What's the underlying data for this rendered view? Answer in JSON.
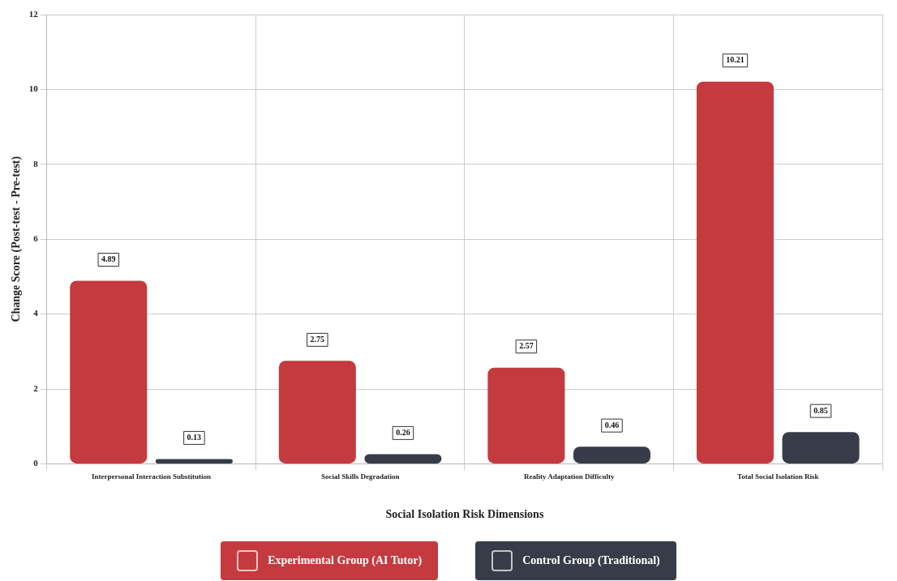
{
  "chart_data": {
    "type": "bar",
    "xlabel": "Social Isolation Risk Dimensions",
    "ylabel": "Change Score (Post-test - Pre-test)",
    "categories": [
      "Interpersonal Interaction Substitution",
      "Social Skills Degradation",
      "Reality Adaptation Difficulty",
      "Total Social Isolation Risk"
    ],
    "series": [
      {
        "name": "Experimental Group (AI Tutor)",
        "color": "#c53a3e",
        "values": [
          4.89,
          2.75,
          2.57,
          10.21
        ]
      },
      {
        "name": "Control Group (Traditional)",
        "color": "#373c48",
        "values": [
          0.13,
          0.26,
          0.46,
          0.85
        ]
      }
    ],
    "ylim": [
      0,
      12
    ],
    "yticks": [
      0,
      2,
      4,
      6,
      8,
      10,
      12
    ],
    "grid": true,
    "legend": "bottom",
    "data_labels": true
  }
}
